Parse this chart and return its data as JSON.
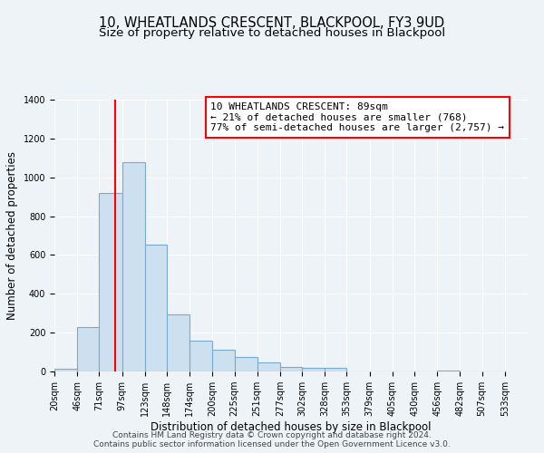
{
  "title": "10, WHEATLANDS CRESCENT, BLACKPOOL, FY3 9UD",
  "subtitle": "Size of property relative to detached houses in Blackpool",
  "xlabel": "Distribution of detached houses by size in Blackpool",
  "ylabel": "Number of detached properties",
  "bar_values": [
    15,
    230,
    920,
    1080,
    655,
    295,
    160,
    110,
    75,
    45,
    25,
    20,
    20,
    0,
    0,
    0,
    0,
    5,
    0,
    0
  ],
  "bin_labels": [
    "20sqm",
    "46sqm",
    "71sqm",
    "97sqm",
    "123sqm",
    "148sqm",
    "174sqm",
    "200sqm",
    "225sqm",
    "251sqm",
    "277sqm",
    "302sqm",
    "328sqm",
    "353sqm",
    "379sqm",
    "405sqm",
    "430sqm",
    "456sqm",
    "482sqm",
    "507sqm",
    "533sqm"
  ],
  "bin_edges": [
    20,
    46,
    71,
    97,
    123,
    148,
    174,
    200,
    225,
    251,
    277,
    302,
    328,
    353,
    379,
    405,
    430,
    456,
    482,
    507,
    533
  ],
  "bar_color": "#cce0f0",
  "bar_edge_color": "#7aabcc",
  "vline_x": 89,
  "vline_color": "red",
  "ylim": [
    0,
    1400
  ],
  "yticks": [
    0,
    200,
    400,
    600,
    800,
    1000,
    1200,
    1400
  ],
  "annotation_title": "10 WHEATLANDS CRESCENT: 89sqm",
  "annotation_line1": "← 21% of detached houses are smaller (768)",
  "annotation_line2": "77% of semi-detached houses are larger (2,757) →",
  "annotation_box_color": "white",
  "annotation_box_edge_color": "red",
  "footer_line1": "Contains HM Land Registry data © Crown copyright and database right 2024.",
  "footer_line2": "Contains public sector information licensed under the Open Government Licence v3.0.",
  "background_color": "#eef3f8",
  "plot_background_color": "#eef3f8",
  "title_fontsize": 10.5,
  "subtitle_fontsize": 9.5,
  "axis_label_fontsize": 8.5,
  "tick_fontsize": 7,
  "footer_fontsize": 6.5,
  "annotation_fontsize": 8
}
